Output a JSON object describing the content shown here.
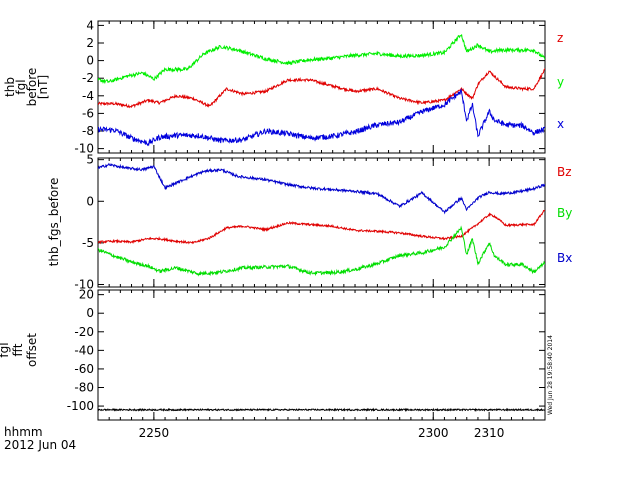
{
  "footer": {
    "time_label": "hhmm",
    "date_label": "2012 Jun 04"
  },
  "side_stamp": "Wed Jun 28 19:58:40 2014",
  "chart_data": [
    {
      "type": "line",
      "ylabel": [
        "thb",
        "fgl",
        "before",
        "[nT]"
      ],
      "ylim": [
        -10.5,
        4.5
      ],
      "yticks": [
        4,
        2,
        0,
        -2,
        -4,
        -6,
        -8,
        -10
      ],
      "xlim": [
        2240,
        2320
      ],
      "xticks": [
        2250,
        2300,
        2310
      ],
      "legend_placement": "right",
      "series": [
        {
          "name": "z",
          "color": "#e00000",
          "noise": 0.15,
          "x": [
            2240,
            2243,
            2246,
            2249,
            2251,
            2254,
            2257,
            2260,
            2263,
            2266,
            2270,
            2274,
            2278,
            2282,
            2286,
            2290,
            2294,
            2298,
            2302,
            2305,
            2307,
            2308,
            2310,
            2311,
            2313,
            2316,
            2318,
            2320
          ],
          "y": [
            -4.9,
            -4.9,
            -5.2,
            -4.5,
            -4.8,
            -4.0,
            -4.3,
            -5.2,
            -3.2,
            -3.8,
            -3.5,
            -2.2,
            -2.2,
            -2.9,
            -3.5,
            -3.2,
            -4.3,
            -4.8,
            -4.5,
            -3.2,
            -4.3,
            -2.7,
            -1.2,
            -1.8,
            -3.0,
            -3.2,
            -3.2,
            -1.0
          ]
        },
        {
          "name": "y",
          "color": "#00ee00",
          "noise": 0.2,
          "x": [
            2240,
            2242,
            2245,
            2248,
            2250,
            2252,
            2256,
            2259,
            2262,
            2265,
            2270,
            2274,
            2278,
            2282,
            2286,
            2290,
            2294,
            2298,
            2302,
            2305,
            2306,
            2308,
            2310,
            2312,
            2315,
            2318,
            2320
          ],
          "y": [
            -2.2,
            -2.4,
            -1.8,
            -1.4,
            -2.1,
            -1.0,
            -1.0,
            0.8,
            1.6,
            1.2,
            0.2,
            -0.3,
            0.1,
            0.3,
            0.6,
            0.8,
            0.5,
            0.6,
            0.9,
            3.0,
            1.0,
            1.8,
            1.0,
            1.2,
            1.2,
            1.2,
            0.2
          ]
        },
        {
          "name": "x",
          "color": "#0000dd",
          "noise": 0.3,
          "x": [
            2240,
            2243,
            2246,
            2249,
            2251,
            2254,
            2258,
            2262,
            2266,
            2270,
            2274,
            2278,
            2282,
            2286,
            2290,
            2294,
            2298,
            2302,
            2305,
            2306,
            2307,
            2308,
            2310,
            2311,
            2313,
            2316,
            2318,
            2320
          ],
          "y": [
            -7.8,
            -7.9,
            -8.8,
            -9.4,
            -8.7,
            -8.5,
            -8.5,
            -9.1,
            -9.0,
            -8.0,
            -8.3,
            -8.8,
            -8.6,
            -8.1,
            -7.3,
            -7.0,
            -5.8,
            -5.0,
            -3.5,
            -6.8,
            -5.0,
            -8.6,
            -5.8,
            -6.8,
            -7.3,
            -7.4,
            -8.2,
            -7.8
          ]
        }
      ]
    },
    {
      "type": "line",
      "ylabel": [
        "thb_fgs_before"
      ],
      "ylim": [
        -10.3,
        5.2
      ],
      "yticks": [
        5,
        0,
        -5,
        -10
      ],
      "xlim": [
        2240,
        2320
      ],
      "xticks": [
        2250,
        2300,
        2310
      ],
      "legend_placement": "right",
      "series": [
        {
          "name": "Bz",
          "color": "#e00000",
          "noise": 0.12,
          "x": [
            2240,
            2243,
            2246,
            2249,
            2251,
            2254,
            2257,
            2260,
            2263,
            2266,
            2270,
            2274,
            2278,
            2282,
            2286,
            2290,
            2294,
            2298,
            2302,
            2305,
            2307,
            2308,
            2310,
            2311,
            2313,
            2316,
            2318,
            2320
          ],
          "y": [
            -4.9,
            -4.8,
            -4.9,
            -4.5,
            -4.5,
            -4.8,
            -5.0,
            -4.4,
            -3.2,
            -3.0,
            -3.4,
            -2.6,
            -2.8,
            -3.0,
            -3.5,
            -3.6,
            -3.8,
            -4.2,
            -4.5,
            -4.2,
            -3.2,
            -2.7,
            -1.6,
            -1.8,
            -2.9,
            -2.8,
            -2.8,
            -1.0
          ]
        },
        {
          "name": "By",
          "color": "#00dd00",
          "noise": 0.2,
          "x": [
            2240,
            2243,
            2246,
            2249,
            2251,
            2254,
            2258,
            2262,
            2266,
            2270,
            2274,
            2278,
            2282,
            2286,
            2290,
            2294,
            2298,
            2302,
            2305,
            2306,
            2307,
            2308,
            2310,
            2311,
            2313,
            2316,
            2318,
            2320
          ],
          "y": [
            -5.8,
            -6.6,
            -7.3,
            -7.8,
            -8.4,
            -8.0,
            -8.7,
            -8.5,
            -8.0,
            -7.9,
            -7.8,
            -8.6,
            -8.6,
            -8.2,
            -7.5,
            -6.5,
            -6.2,
            -5.5,
            -3.2,
            -6.4,
            -4.5,
            -7.5,
            -5.0,
            -6.6,
            -7.6,
            -7.6,
            -8.5,
            -7.4
          ]
        },
        {
          "name": "Bx",
          "color": "#0000cc",
          "noise": 0.15,
          "x": [
            2240,
            2242,
            2245,
            2248,
            2250,
            2252,
            2256,
            2259,
            2262,
            2265,
            2270,
            2274,
            2278,
            2282,
            2286,
            2290,
            2294,
            2298,
            2302,
            2305,
            2306,
            2308,
            2310,
            2312,
            2315,
            2318,
            2320
          ],
          "y": [
            4.0,
            4.4,
            4.0,
            3.8,
            4.2,
            1.6,
            2.8,
            3.6,
            3.8,
            3.0,
            2.6,
            2.0,
            1.6,
            1.4,
            1.2,
            0.9,
            -0.6,
            1.0,
            -1.3,
            0.4,
            -1.0,
            0.4,
            1.1,
            0.9,
            1.1,
            1.5,
            2.0
          ]
        }
      ]
    },
    {
      "type": "line",
      "ylabel": [
        "fgl",
        "fft",
        "offset"
      ],
      "ylim": [
        -115,
        25
      ],
      "yticks": [
        20,
        0,
        -20,
        -40,
        -60,
        -80,
        -100
      ],
      "xlim": [
        2240,
        2320
      ],
      "xticks": [
        2250,
        2300,
        2310
      ],
      "series": [
        {
          "name": "",
          "color": "#000000",
          "noise": 0.8,
          "x": [
            2240,
            2320
          ],
          "y": [
            -104,
            -104
          ]
        }
      ]
    }
  ]
}
